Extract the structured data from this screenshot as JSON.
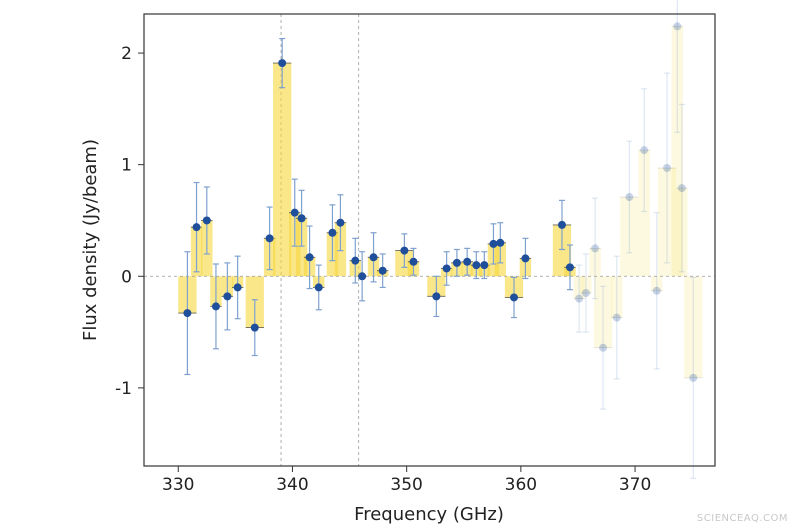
{
  "watermark": "SCIENCEAQ.COM",
  "chart_data": {
    "type": "scatter",
    "xlabel": "Frequency (GHz)",
    "ylabel": "Flux density (Jy/beam)",
    "xlim": [
      327,
      377
    ],
    "ylim": [
      -1.7,
      2.35
    ],
    "xticks": [
      330,
      340,
      350,
      360,
      370
    ],
    "yticks": [
      -1,
      0,
      1,
      2
    ],
    "vlines": [
      339.0,
      345.8
    ],
    "hline": 0,
    "bar_color": "#f5d73c",
    "point_color": "#1f4e9a",
    "errorbar_color": "#7fa1cf",
    "faded_from_x": 365,
    "points": [
      {
        "x": 330.8,
        "y": -0.33,
        "dy": 0.55,
        "bw": 1.6
      },
      {
        "x": 331.6,
        "y": 0.44,
        "dy": 0.4,
        "bw": 1.0
      },
      {
        "x": 332.5,
        "y": 0.5,
        "dy": 0.3,
        "bw": 1.0
      },
      {
        "x": 333.3,
        "y": -0.27,
        "dy": 0.38,
        "bw": 1.0
      },
      {
        "x": 334.3,
        "y": -0.18,
        "dy": 0.3,
        "bw": 1.0
      },
      {
        "x": 335.2,
        "y": -0.1,
        "dy": 0.28,
        "bw": 1.0
      },
      {
        "x": 336.7,
        "y": -0.46,
        "dy": 0.25,
        "bw": 1.6
      },
      {
        "x": 338.0,
        "y": 0.34,
        "dy": 0.28,
        "bw": 1.0
      },
      {
        "x": 339.1,
        "y": 1.91,
        "dy": 0.22,
        "bw": 1.6
      },
      {
        "x": 340.2,
        "y": 0.57,
        "dy": 0.3,
        "bw": 1.0
      },
      {
        "x": 340.8,
        "y": 0.52,
        "dy": 0.25,
        "bw": 1.0
      },
      {
        "x": 341.5,
        "y": 0.17,
        "dy": 0.28,
        "bw": 1.0
      },
      {
        "x": 342.3,
        "y": -0.1,
        "dy": 0.2,
        "bw": 1.0
      },
      {
        "x": 343.5,
        "y": 0.39,
        "dy": 0.25,
        "bw": 1.0
      },
      {
        "x": 344.2,
        "y": 0.48,
        "dy": 0.25,
        "bw": 1.0
      },
      {
        "x": 345.5,
        "y": 0.14,
        "dy": 0.2,
        "bw": 1.0
      },
      {
        "x": 346.1,
        "y": 0.0,
        "dy": 0.22,
        "bw": 0.8
      },
      {
        "x": 347.1,
        "y": 0.17,
        "dy": 0.22,
        "bw": 1.0
      },
      {
        "x": 347.9,
        "y": 0.05,
        "dy": 0.15,
        "bw": 1.0
      },
      {
        "x": 349.8,
        "y": 0.23,
        "dy": 0.15,
        "bw": 1.6
      },
      {
        "x": 350.6,
        "y": 0.13,
        "dy": 0.12,
        "bw": 1.0
      },
      {
        "x": 352.6,
        "y": -0.18,
        "dy": 0.18,
        "bw": 1.6
      },
      {
        "x": 353.5,
        "y": 0.07,
        "dy": 0.15,
        "bw": 1.0
      },
      {
        "x": 354.4,
        "y": 0.12,
        "dy": 0.12,
        "bw": 1.0
      },
      {
        "x": 355.3,
        "y": 0.13,
        "dy": 0.12,
        "bw": 1.0
      },
      {
        "x": 356.1,
        "y": 0.1,
        "dy": 0.12,
        "bw": 1.0
      },
      {
        "x": 356.8,
        "y": 0.1,
        "dy": 0.12,
        "bw": 1.0
      },
      {
        "x": 357.6,
        "y": 0.29,
        "dy": 0.18,
        "bw": 1.0
      },
      {
        "x": 358.2,
        "y": 0.3,
        "dy": 0.18,
        "bw": 1.0
      },
      {
        "x": 359.4,
        "y": -0.19,
        "dy": 0.18,
        "bw": 1.6
      },
      {
        "x": 360.4,
        "y": 0.16,
        "dy": 0.18,
        "bw": 1.0
      },
      {
        "x": 363.6,
        "y": 0.46,
        "dy": 0.22,
        "bw": 1.6
      },
      {
        "x": 364.3,
        "y": 0.08,
        "dy": 0.2,
        "bw": 1.0
      },
      {
        "x": 365.1,
        "y": -0.2,
        "dy": 0.3,
        "bw": 1.0
      },
      {
        "x": 365.7,
        "y": -0.15,
        "dy": 0.35,
        "bw": 1.0
      },
      {
        "x": 366.5,
        "y": 0.25,
        "dy": 0.45,
        "bw": 1.0
      },
      {
        "x": 367.2,
        "y": -0.64,
        "dy": 0.55,
        "bw": 1.6
      },
      {
        "x": 368.4,
        "y": -0.37,
        "dy": 0.55,
        "bw": 1.0
      },
      {
        "x": 369.5,
        "y": 0.71,
        "dy": 0.5,
        "bw": 1.6
      },
      {
        "x": 370.8,
        "y": 1.13,
        "dy": 0.55,
        "bw": 1.0
      },
      {
        "x": 371.9,
        "y": -0.13,
        "dy": 0.7,
        "bw": 1.0
      },
      {
        "x": 372.8,
        "y": 0.97,
        "dy": 0.85,
        "bw": 1.6
      },
      {
        "x": 373.7,
        "y": 2.24,
        "dy": 0.95,
        "bw": 1.0
      },
      {
        "x": 374.1,
        "y": 0.79,
        "dy": 0.75,
        "bw": 1.0
      },
      {
        "x": 375.1,
        "y": -0.91,
        "dy": 0.9,
        "bw": 1.6
      }
    ]
  }
}
